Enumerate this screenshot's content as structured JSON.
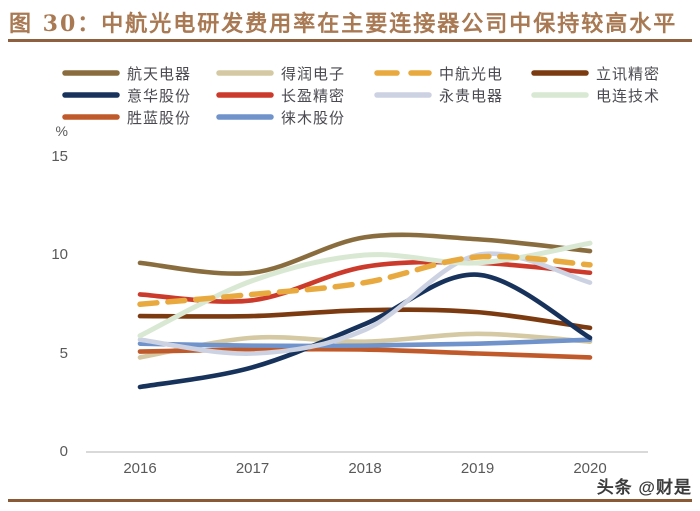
{
  "title": "图 30：中航光电研发费用率在主要连接器公司中保持较高水平",
  "watermark": "头条 @财是",
  "colors": {
    "background": "#ffffff",
    "title_text": "#a87952",
    "title_rule": "#8f6040",
    "footer_rule": "#8a5a36",
    "axis_line": "#d9d9d9",
    "tick_text": "#595959",
    "legend_text": "#4a4a50",
    "watermark_text": "#3c3c3c"
  },
  "chart_data": {
    "type": "line",
    "title": "中航光电研发费用率在主要连接器公司中保持较高水平",
    "xlabel": "",
    "ylabel": "%",
    "x_labels": [
      "2016",
      "2017",
      "2018",
      "2019",
      "2020"
    ],
    "yticks": [
      15,
      10,
      5,
      0
    ],
    "ylim": [
      0,
      15
    ],
    "grid": false,
    "legend_position": "top",
    "line_smoothing": true,
    "series": [
      {
        "name": "航天电器",
        "color": "#8a6d3e",
        "line_style": "solid",
        "values": [
          9.6,
          9.1,
          10.9,
          10.8,
          10.2
        ]
      },
      {
        "name": "得润电子",
        "color": "#d5c9a3",
        "line_style": "solid",
        "values": [
          4.8,
          5.8,
          5.6,
          6.0,
          5.6
        ]
      },
      {
        "name": "中航光电",
        "color": "#e8a93f",
        "line_style": "dashed",
        "values": [
          7.5,
          8.0,
          8.6,
          9.9,
          9.5
        ]
      },
      {
        "name": "立讯精密",
        "color": "#7c3a10",
        "line_style": "solid",
        "values": [
          6.9,
          6.9,
          7.2,
          7.1,
          6.3
        ]
      },
      {
        "name": "意华股份",
        "color": "#17335c",
        "line_style": "solid",
        "values": [
          3.3,
          4.3,
          6.5,
          9.0,
          5.8
        ]
      },
      {
        "name": "长盈精密",
        "color": "#cb3a2b",
        "line_style": "solid",
        "values": [
          8.0,
          7.7,
          9.4,
          9.6,
          9.1
        ]
      },
      {
        "name": "永贵电器",
        "color": "#ccd2e2",
        "line_style": "solid",
        "values": [
          5.7,
          5.0,
          6.2,
          10.0,
          8.6
        ]
      },
      {
        "name": "电连技术",
        "color": "#d9e8d2",
        "line_style": "solid",
        "values": [
          5.9,
          8.7,
          10.0,
          9.6,
          10.6
        ]
      },
      {
        "name": "胜蓝股份",
        "color": "#c05a2b",
        "line_style": "solid",
        "values": [
          5.1,
          5.2,
          5.2,
          5.0,
          4.8
        ]
      },
      {
        "name": "徕木股份",
        "color": "#7093cb",
        "line_style": "solid",
        "values": [
          5.5,
          5.4,
          5.4,
          5.5,
          5.7
        ]
      }
    ]
  }
}
